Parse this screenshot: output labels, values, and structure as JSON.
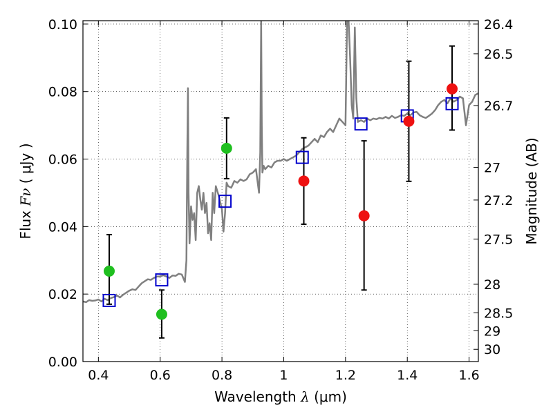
{
  "chart_data": {
    "type": "scatter",
    "xlabel": {
      "prefix": "Wavelength  ",
      "sym": "λ",
      "suffix": " (μm)"
    },
    "ylabel": {
      "prefix": "Flux  ",
      "sym": "Fν",
      "suffix": "  ( μJy )"
    },
    "ylabel_right": "Magnitude (AB)",
    "xlim": [
      0.35,
      1.63
    ],
    "ylim": [
      0.0,
      0.101
    ],
    "x_ticks": [
      {
        "v": 0.4,
        "label": "0.4"
      },
      {
        "v": 0.6,
        "label": "0.6"
      },
      {
        "v": 0.8,
        "label": "0.8"
      },
      {
        "v": 1.0,
        "label": "1"
      },
      {
        "v": 1.2,
        "label": "1.2"
      },
      {
        "v": 1.4,
        "label": "1.4"
      },
      {
        "v": 1.6,
        "label": "1.6"
      }
    ],
    "y_ticks": [
      {
        "v": 0.0,
        "label": "0.00"
      },
      {
        "v": 0.02,
        "label": "0.02"
      },
      {
        "v": 0.04,
        "label": "0.04"
      },
      {
        "v": 0.06,
        "label": "0.06"
      },
      {
        "v": 0.08,
        "label": "0.08"
      },
      {
        "v": 0.1,
        "label": "0.10"
      }
    ],
    "mag_ticks": [
      {
        "mag": 26.4,
        "label": "26.4"
      },
      {
        "mag": 26.5,
        "label": "26.5"
      },
      {
        "mag": 26.7,
        "label": "26.7"
      },
      {
        "mag": 27,
        "label": "27"
      },
      {
        "mag": 27.2,
        "label": "27.2"
      },
      {
        "mag": 27.5,
        "label": "27.5"
      },
      {
        "mag": 28,
        "label": "28"
      },
      {
        "mag": 28.5,
        "label": "28.5"
      },
      {
        "mag": 29,
        "label": "29"
      },
      {
        "mag": 30,
        "label": "30"
      }
    ],
    "grid": true,
    "colors": {
      "template": "#808080",
      "model": "#0000cc",
      "green": "#1fbf1f",
      "red": "#ee1111",
      "errorbar": "#000000"
    },
    "template_spectrum": {
      "x": [
        0.35,
        0.36,
        0.37,
        0.38,
        0.39,
        0.4,
        0.41,
        0.42,
        0.43,
        0.44,
        0.45,
        0.46,
        0.47,
        0.48,
        0.49,
        0.5,
        0.51,
        0.52,
        0.53,
        0.54,
        0.55,
        0.56,
        0.57,
        0.58,
        0.59,
        0.6,
        0.61,
        0.62,
        0.63,
        0.64,
        0.65,
        0.66,
        0.67,
        0.68,
        0.685,
        0.688,
        0.69,
        0.692,
        0.695,
        0.7,
        0.705,
        0.71,
        0.715,
        0.72,
        0.725,
        0.73,
        0.735,
        0.74,
        0.745,
        0.75,
        0.755,
        0.76,
        0.765,
        0.77,
        0.775,
        0.78,
        0.79,
        0.8,
        0.805,
        0.81,
        0.815,
        0.82,
        0.83,
        0.84,
        0.85,
        0.86,
        0.87,
        0.88,
        0.89,
        0.9,
        0.91,
        0.92,
        0.924,
        0.927,
        0.929,
        0.931,
        0.935,
        0.94,
        0.95,
        0.96,
        0.97,
        0.98,
        0.99,
        1.0,
        1.01,
        1.02,
        1.03,
        1.04,
        1.05,
        1.06,
        1.07,
        1.08,
        1.09,
        1.1,
        1.11,
        1.12,
        1.13,
        1.14,
        1.15,
        1.16,
        1.17,
        1.18,
        1.19,
        1.2,
        1.205,
        1.21,
        1.215,
        1.22,
        1.225,
        1.23,
        1.235,
        1.24,
        1.25,
        1.26,
        1.27,
        1.28,
        1.29,
        1.3,
        1.31,
        1.32,
        1.33,
        1.34,
        1.35,
        1.36,
        1.37,
        1.38,
        1.39,
        1.4,
        1.41,
        1.42,
        1.43,
        1.44,
        1.45,
        1.46,
        1.47,
        1.48,
        1.49,
        1.5,
        1.51,
        1.52,
        1.53,
        1.54,
        1.55,
        1.56,
        1.57,
        1.58,
        1.59,
        1.6,
        1.61,
        1.62,
        1.63
      ],
      "y": [
        0.0178,
        0.0176,
        0.0182,
        0.018,
        0.0181,
        0.0184,
        0.0178,
        0.0186,
        0.0182,
        0.0188,
        0.0191,
        0.0196,
        0.019,
        0.0198,
        0.0204,
        0.021,
        0.0214,
        0.0212,
        0.0222,
        0.0232,
        0.0238,
        0.0244,
        0.0242,
        0.0248,
        0.0252,
        0.0252,
        0.0256,
        0.0252,
        0.0248,
        0.0255,
        0.0254,
        0.026,
        0.0258,
        0.0236,
        0.03,
        0.063,
        0.081,
        0.05,
        0.035,
        0.046,
        0.042,
        0.044,
        0.036,
        0.05,
        0.052,
        0.048,
        0.045,
        0.05,
        0.044,
        0.047,
        0.038,
        0.041,
        0.036,
        0.05,
        0.044,
        0.052,
        0.049,
        0.045,
        0.0385,
        0.044,
        0.053,
        0.052,
        0.0515,
        0.0535,
        0.053,
        0.054,
        0.0535,
        0.054,
        0.0555,
        0.056,
        0.057,
        0.05,
        0.062,
        0.101,
        0.07,
        0.056,
        0.058,
        0.057,
        0.058,
        0.0575,
        0.059,
        0.0595,
        0.0595,
        0.06,
        0.0595,
        0.06,
        0.0605,
        0.061,
        0.062,
        0.063,
        0.0635,
        0.064,
        0.065,
        0.066,
        0.065,
        0.067,
        0.0665,
        0.068,
        0.069,
        0.068,
        0.07,
        0.072,
        0.071,
        0.07,
        0.101,
        0.101,
        0.09,
        0.076,
        0.072,
        0.099,
        0.078,
        0.071,
        0.0715,
        0.071,
        0.072,
        0.0715,
        0.072,
        0.0718,
        0.0722,
        0.072,
        0.0725,
        0.072,
        0.0728,
        0.0722,
        0.0725,
        0.073,
        0.0728,
        0.0735,
        0.073,
        0.0738,
        0.074,
        0.073,
        0.0725,
        0.0722,
        0.0728,
        0.0735,
        0.0745,
        0.076,
        0.077,
        0.0775,
        0.0765,
        0.078,
        0.077,
        0.0775,
        0.0785,
        0.078,
        0.07,
        0.076,
        0.077,
        0.079,
        0.0795
      ]
    },
    "model_photometry": {
      "x": [
        0.435,
        0.605,
        0.81,
        1.06,
        1.25,
        1.4,
        1.545
      ],
      "y": [
        0.0181,
        0.0242,
        0.0475,
        0.0605,
        0.0704,
        0.0728,
        0.0764
      ]
    },
    "green_points": {
      "x": [
        0.435,
        0.605,
        0.815
      ],
      "y": [
        0.0268,
        0.014,
        0.0632
      ],
      "err_low": [
        0.0098,
        0.007,
        0.009
      ],
      "err_high": [
        0.0108,
        0.0072,
        0.009
      ]
    },
    "red_points": {
      "x": [
        1.065,
        1.26,
        1.405,
        1.545
      ],
      "y": [
        0.0535,
        0.0432,
        0.0712,
        0.0808
      ],
      "err_low": [
        0.0128,
        0.022,
        0.0178,
        0.0122
      ],
      "err_high": [
        0.0128,
        0.0222,
        0.0178,
        0.0127
      ]
    }
  }
}
